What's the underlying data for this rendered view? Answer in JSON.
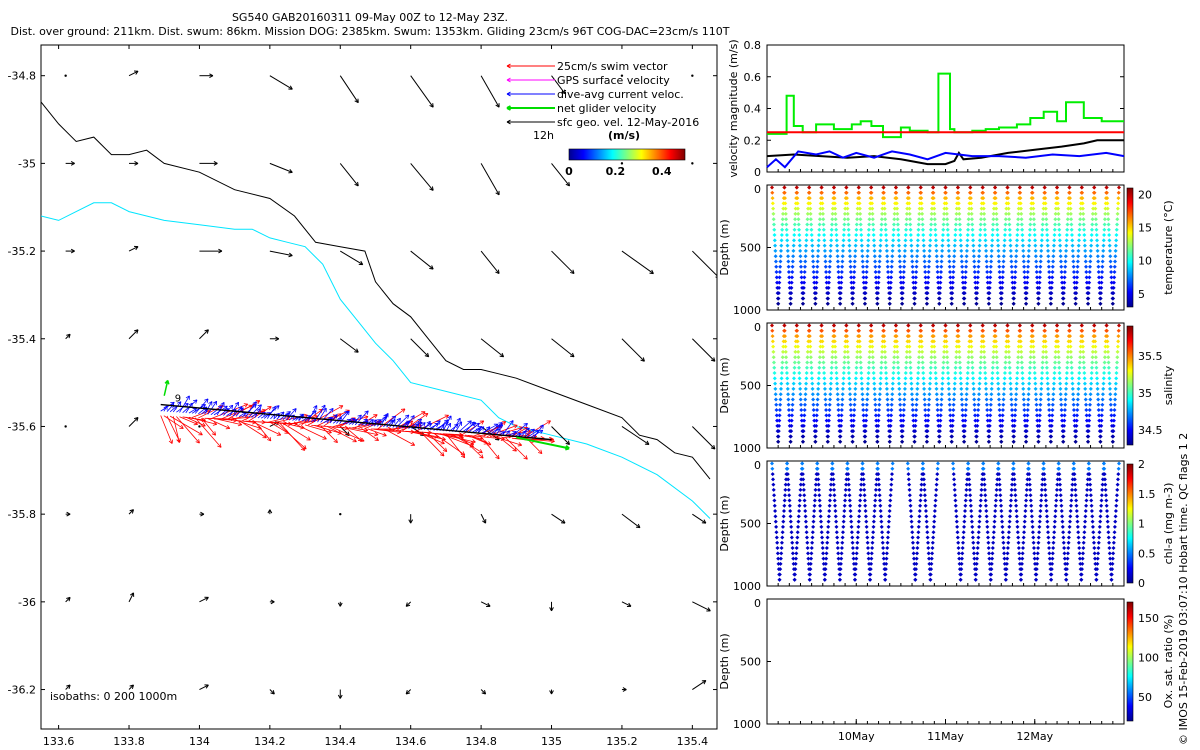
{
  "title_line1": "SG540 GAB20160311 09-May 00Z to 12-May 23Z.",
  "title_line2": "Dist. over ground: 211km. Dist. swum: 86km. Mission DOG: 2385km. Swum: 1353km. Gliding 23cm/s 96T COG-DAC=23cm/s 110T",
  "footer": "© IMOS 15-Feb-2019 03:07:10 Hobart time. QC flags 1  2",
  "colors": {
    "swim": "#ff0000",
    "gps": "#ff00ff",
    "dac": "#0000ff",
    "net": "#00dd00",
    "sfc": "#000000",
    "iso200": "#000000",
    "iso1000": "#00e5ff"
  },
  "chart_data": [
    {
      "type": "quiver-map",
      "xlim": [
        133.55,
        135.47
      ],
      "ylim": [
        -36.29,
        -34.73
      ],
      "x_ticks": [
        "133.6",
        "133.8",
        "134",
        "134.2",
        "134.4",
        "134.6",
        "134.8",
        "135",
        "135.2",
        "135.4"
      ],
      "y_ticks": [
        "-34.8",
        "-35",
        "-35.2",
        "-35.4",
        "-35.6",
        "-35.8",
        "-36",
        "-36.2"
      ],
      "legend": [
        {
          "label": "25cm/s swim vector",
          "color": "#ff0000"
        },
        {
          "label": "GPS surface velocity",
          "color": "#ff00ff"
        },
        {
          "label": "dive-avg current veloc.",
          "color": "#0000ff"
        },
        {
          "label": "net glider velocity",
          "color": "#00dd00"
        },
        {
          "label": "sfc geo. vel. 12-May-2016",
          "color": "#000000"
        }
      ],
      "legend_scale_label": "12h",
      "colorbar": {
        "label": "(m/s)",
        "ticks": [
          "0",
          "0.2",
          "0.4"
        ],
        "range": [
          0,
          0.5
        ]
      },
      "isobath_label": "isobaths: 0   200  1000m",
      "track_label": "9",
      "glider_track": {
        "lon_start": 133.89,
        "lon_end": 135.05,
        "lat_start": -35.55,
        "lat_end": -35.65
      },
      "isobath_200": [
        [
          133.55,
          -34.86
        ],
        [
          133.6,
          -34.91
        ],
        [
          133.65,
          -34.95
        ],
        [
          133.7,
          -34.94
        ],
        [
          133.75,
          -34.98
        ],
        [
          133.8,
          -34.98
        ],
        [
          133.85,
          -34.97
        ],
        [
          133.9,
          -35.0
        ],
        [
          134.0,
          -35.02
        ],
        [
          134.1,
          -35.06
        ],
        [
          134.2,
          -35.08
        ],
        [
          134.27,
          -35.12
        ],
        [
          134.33,
          -35.18
        ],
        [
          134.4,
          -35.19
        ],
        [
          134.47,
          -35.2
        ],
        [
          134.5,
          -35.27
        ],
        [
          134.55,
          -35.32
        ],
        [
          134.6,
          -35.35
        ],
        [
          134.65,
          -35.4
        ],
        [
          134.7,
          -35.45
        ],
        [
          134.75,
          -35.47
        ],
        [
          134.8,
          -35.47
        ],
        [
          134.85,
          -35.48
        ],
        [
          134.9,
          -35.49
        ],
        [
          135.0,
          -35.52
        ],
        [
          135.1,
          -35.55
        ],
        [
          135.2,
          -35.58
        ],
        [
          135.25,
          -35.62
        ],
        [
          135.3,
          -35.63
        ],
        [
          135.35,
          -35.66
        ],
        [
          135.4,
          -35.67
        ],
        [
          135.45,
          -35.72
        ]
      ],
      "isobath_1000": [
        [
          133.55,
          -35.12
        ],
        [
          133.6,
          -35.13
        ],
        [
          133.65,
          -35.11
        ],
        [
          133.7,
          -35.09
        ],
        [
          133.75,
          -35.09
        ],
        [
          133.8,
          -35.11
        ],
        [
          133.9,
          -35.13
        ],
        [
          134.0,
          -35.14
        ],
        [
          134.1,
          -35.15
        ],
        [
          134.15,
          -35.15
        ],
        [
          134.2,
          -35.17
        ],
        [
          134.25,
          -35.18
        ],
        [
          134.3,
          -35.19
        ],
        [
          134.35,
          -35.23
        ],
        [
          134.4,
          -35.31
        ],
        [
          134.45,
          -35.36
        ],
        [
          134.5,
          -35.41
        ],
        [
          134.55,
          -35.45
        ],
        [
          134.6,
          -35.5
        ],
        [
          134.7,
          -35.52
        ],
        [
          134.8,
          -35.54
        ],
        [
          134.85,
          -35.58
        ],
        [
          134.9,
          -35.6
        ],
        [
          135.0,
          -35.62
        ],
        [
          135.1,
          -35.64
        ],
        [
          135.2,
          -35.67
        ],
        [
          135.3,
          -35.71
        ],
        [
          135.4,
          -35.77
        ],
        [
          135.45,
          -35.81
        ]
      ],
      "sfc_vectors": [
        [
          133.62,
          -34.8,
          0,
          0
        ],
        [
          133.8,
          -34.8,
          0.02,
          0.01
        ],
        [
          134.0,
          -34.8,
          0.03,
          0
        ],
        [
          134.2,
          -34.8,
          0.05,
          -0.03
        ],
        [
          134.4,
          -34.8,
          0.04,
          -0.06
        ],
        [
          134.6,
          -34.8,
          0.05,
          -0.07
        ],
        [
          134.8,
          -34.8,
          0.04,
          -0.07
        ],
        [
          135.0,
          -34.8,
          0.03,
          -0.04
        ],
        [
          135.2,
          -34.8,
          0,
          0
        ],
        [
          135.4,
          -34.8,
          0,
          0
        ],
        [
          133.62,
          -35.0,
          0.02,
          0
        ],
        [
          133.8,
          -35.0,
          0.02,
          0
        ],
        [
          134.0,
          -35.0,
          0.04,
          0
        ],
        [
          134.2,
          -35.0,
          0.05,
          -0.02
        ],
        [
          134.4,
          -35.0,
          0.04,
          -0.05
        ],
        [
          134.6,
          -35.0,
          0.05,
          -0.06
        ],
        [
          134.8,
          -35.0,
          0.04,
          -0.07
        ],
        [
          135.0,
          -35.0,
          0.04,
          -0.05
        ],
        [
          135.2,
          -35.0,
          0,
          0
        ],
        [
          135.4,
          -35.0,
          0,
          0
        ],
        [
          133.62,
          -35.2,
          0.02,
          0
        ],
        [
          133.8,
          -35.2,
          0.02,
          0.01
        ],
        [
          134.0,
          -35.2,
          0.05,
          0
        ],
        [
          134.2,
          -35.2,
          0.05,
          -0.01
        ],
        [
          134.4,
          -35.2,
          0.05,
          -0.03
        ],
        [
          134.6,
          -35.2,
          0.05,
          -0.04
        ],
        [
          134.8,
          -35.2,
          0.04,
          -0.05
        ],
        [
          135.0,
          -35.2,
          0.05,
          -0.05
        ],
        [
          135.2,
          -35.2,
          0.07,
          -0.05
        ],
        [
          135.4,
          -35.2,
          0.06,
          -0.06
        ],
        [
          133.62,
          -35.4,
          0.01,
          0.01
        ],
        [
          133.8,
          -35.4,
          0.02,
          0.02
        ],
        [
          134.0,
          -35.4,
          0.02,
          0.02
        ],
        [
          134.2,
          -35.4,
          0.02,
          0
        ],
        [
          134.4,
          -35.4,
          0.04,
          -0.03
        ],
        [
          134.6,
          -35.4,
          0.04,
          -0.04
        ],
        [
          134.8,
          -35.4,
          0.05,
          -0.04
        ],
        [
          135.0,
          -35.4,
          0.05,
          -0.04
        ],
        [
          135.2,
          -35.4,
          0.05,
          -0.05
        ],
        [
          135.4,
          -35.4,
          0.05,
          -0.05
        ],
        [
          133.62,
          -35.6,
          0,
          0
        ],
        [
          133.8,
          -35.6,
          0.02,
          0.02
        ],
        [
          134.0,
          -35.6,
          0,
          0
        ],
        [
          134.2,
          -35.6,
          0.02,
          0.01
        ],
        [
          134.4,
          -35.6,
          0.02,
          -0.02
        ],
        [
          134.6,
          -35.6,
          0.03,
          -0.02
        ],
        [
          134.8,
          -35.6,
          0.04,
          -0.03
        ],
        [
          135.0,
          -35.6,
          0.04,
          -0.04
        ],
        [
          135.2,
          -35.6,
          0.06,
          -0.04
        ],
        [
          135.4,
          -35.6,
          0.05,
          -0.05
        ],
        [
          133.62,
          -35.8,
          0.01,
          0
        ],
        [
          133.8,
          -35.8,
          0.01,
          0.01
        ],
        [
          134.0,
          -35.8,
          0.01,
          0
        ],
        [
          134.2,
          -35.8,
          0,
          0.01
        ],
        [
          134.4,
          -35.8,
          0,
          0
        ],
        [
          134.6,
          -35.8,
          0,
          -0.02
        ],
        [
          134.8,
          -35.8,
          0.01,
          -0.02
        ],
        [
          135.0,
          -35.8,
          0.03,
          -0.02
        ],
        [
          135.2,
          -35.8,
          0.04,
          -0.03
        ],
        [
          135.4,
          -35.8,
          0.03,
          -0.02
        ],
        [
          133.62,
          -36.0,
          0.01,
          0.01
        ],
        [
          133.8,
          -36.0,
          0.01,
          0.02
        ],
        [
          134.0,
          -36.0,
          0.02,
          0.01
        ],
        [
          134.2,
          -36.0,
          0.01,
          0
        ],
        [
          134.4,
          -36.0,
          0,
          -0.01
        ],
        [
          134.6,
          -36.0,
          -0.01,
          -0.01
        ],
        [
          134.8,
          -36.0,
          0.02,
          -0.01
        ],
        [
          135.0,
          -36.0,
          0,
          -0.02
        ],
        [
          135.2,
          -36.0,
          0.02,
          -0.01
        ],
        [
          135.4,
          -36.0,
          0.04,
          -0.02
        ],
        [
          133.62,
          -36.2,
          0.01,
          0.01
        ],
        [
          133.8,
          -36.2,
          0.01,
          0.01
        ],
        [
          134.0,
          -36.2,
          0.02,
          0.01
        ],
        [
          134.2,
          -36.2,
          0.01,
          -0.01
        ],
        [
          134.4,
          -36.2,
          0,
          -0.02
        ],
        [
          134.6,
          -36.2,
          -0.01,
          -0.01
        ],
        [
          134.8,
          -36.2,
          0.01,
          -0.01
        ],
        [
          135.0,
          -36.2,
          0,
          -0.01
        ],
        [
          135.2,
          -36.2,
          0.01,
          0
        ],
        [
          135.4,
          -36.2,
          0.03,
          0.02
        ]
      ]
    },
    {
      "type": "line",
      "ylabel": "velocity magnitude (m/s)",
      "ylim": [
        0,
        0.8
      ],
      "y_ticks": [
        "0",
        "0.2",
        "0.4",
        "0.6",
        "0.8"
      ],
      "x_range_days": [
        0,
        4
      ],
      "series": [
        {
          "color": "#00ee00",
          "x": [
            0,
            0.22,
            0.22,
            0.3,
            0.3,
            0.4,
            0.4,
            0.55,
            0.55,
            0.75,
            0.75,
            0.95,
            0.95,
            1.05,
            1.05,
            1.17,
            1.17,
            1.3,
            1.3,
            1.5,
            1.5,
            1.6,
            1.6,
            1.8,
            1.8,
            1.92,
            1.92,
            2.05,
            2.05,
            2.1,
            2.1,
            2.3,
            2.3,
            2.45,
            2.45,
            2.6,
            2.6,
            2.8,
            2.8,
            2.95,
            2.95,
            3.1,
            3.1,
            3.25,
            3.25,
            3.35,
            3.35,
            3.55,
            3.55,
            3.75,
            3.75,
            4.0
          ],
          "y": [
            0.24,
            0.24,
            0.48,
            0.48,
            0.29,
            0.29,
            0.25,
            0.25,
            0.3,
            0.3,
            0.27,
            0.27,
            0.3,
            0.3,
            0.32,
            0.32,
            0.29,
            0.29,
            0.22,
            0.22,
            0.28,
            0.28,
            0.26,
            0.26,
            0.25,
            0.25,
            0.62,
            0.62,
            0.27,
            0.27,
            0.25,
            0.25,
            0.26,
            0.26,
            0.27,
            0.27,
            0.28,
            0.28,
            0.3,
            0.3,
            0.34,
            0.34,
            0.38,
            0.38,
            0.32,
            0.32,
            0.44,
            0.44,
            0.34,
            0.34,
            0.32,
            0.32
          ]
        },
        {
          "color": "#ff0000",
          "x": [
            0,
            4
          ],
          "y": [
            0.25,
            0.25
          ]
        },
        {
          "color": "#000000",
          "x": [
            0,
            0.3,
            0.6,
            0.9,
            1.2,
            1.5,
            1.8,
            2.0,
            2.1,
            2.15,
            2.2,
            2.4,
            2.7,
            3.0,
            3.3,
            3.55,
            3.7,
            4.0
          ],
          "y": [
            0.1,
            0.11,
            0.1,
            0.09,
            0.1,
            0.08,
            0.05,
            0.05,
            0.07,
            0.12,
            0.08,
            0.09,
            0.12,
            0.14,
            0.16,
            0.18,
            0.2,
            0.2
          ]
        },
        {
          "color": "#0000ff",
          "x": [
            0,
            0.1,
            0.2,
            0.35,
            0.55,
            0.7,
            0.85,
            1.0,
            1.2,
            1.4,
            1.6,
            1.8,
            2.0,
            2.3,
            2.6,
            2.9,
            3.2,
            3.5,
            3.8,
            4.0
          ],
          "y": [
            0.03,
            0.08,
            0.03,
            0.13,
            0.11,
            0.13,
            0.09,
            0.12,
            0.09,
            0.13,
            0.11,
            0.08,
            0.12,
            0.1,
            0.1,
            0.09,
            0.11,
            0.1,
            0.12,
            0.1
          ]
        }
      ]
    },
    {
      "type": "scatter",
      "ylabel": "Depth (m)",
      "y_ticks": [
        "0",
        "500",
        "1000"
      ],
      "ylim": [
        0,
        1000
      ],
      "dives": 28,
      "max_depth": 950,
      "colorbar": {
        "label": "temperature (°C)",
        "ticks": [
          "5",
          "10",
          "15",
          "20"
        ],
        "range": [
          3,
          21
        ]
      }
    },
    {
      "type": "scatter",
      "ylabel": "Depth (m)",
      "y_ticks": [
        "0",
        "500",
        "1000"
      ],
      "ylim": [
        0,
        1000
      ],
      "dives": 28,
      "max_depth": 950,
      "colorbar": {
        "label": "salinity",
        "ticks": [
          "34.5",
          "35",
          "35.5"
        ],
        "range": [
          34.3,
          35.9
        ]
      }
    },
    {
      "type": "scatter",
      "ylabel": "Depth (m)",
      "y_ticks": [
        "0",
        "500",
        "1000"
      ],
      "ylim": [
        0,
        1000
      ],
      "dives": 21,
      "max_depth": 950,
      "colorbar": {
        "label": "chl-a (mg m-3)",
        "ticks": [
          "0",
          "0.5",
          "1",
          "1.5",
          "2"
        ],
        "range": [
          0,
          2
        ]
      }
    },
    {
      "type": "scatter",
      "ylabel": "Depth (m)",
      "y_ticks": [
        "0",
        "500",
        "1000"
      ],
      "ylim": [
        0,
        1000
      ],
      "dives": 0,
      "colorbar": {
        "label": "Ox. sat. ratio (%)",
        "ticks": [
          "50",
          "100",
          "150"
        ],
        "range": [
          20,
          170
        ]
      },
      "x_ticks": [
        "10May",
        "11May",
        "12May"
      ]
    }
  ]
}
